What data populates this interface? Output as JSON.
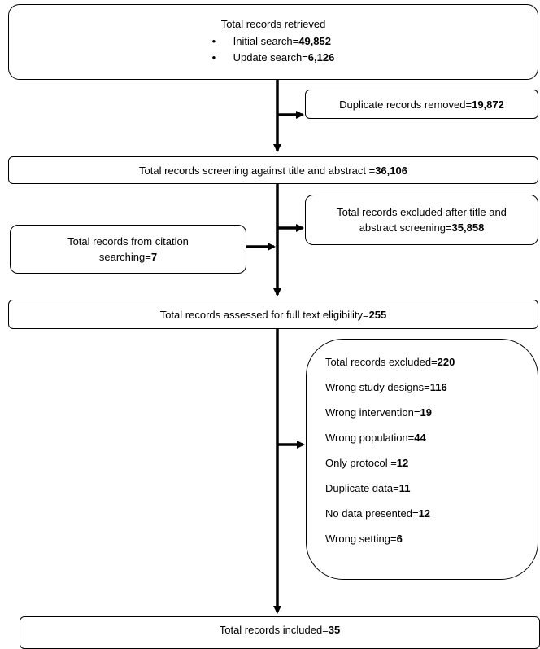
{
  "retrieved": {
    "title": "Total records retrieved",
    "items": [
      {
        "label": "Initial search=",
        "value": "49,852"
      },
      {
        "label": "Update search=",
        "value": "6,126"
      }
    ]
  },
  "duplicates": {
    "label": "Duplicate records removed=",
    "value": "19,872"
  },
  "screening": {
    "label": "Total records screening against title and abstract =",
    "value": "36,106"
  },
  "excluded_ta": {
    "line1": "Total records excluded after title and",
    "line2": "abstract screening=",
    "value": "35,858"
  },
  "citation": {
    "line1": "Total records from citation",
    "line2": "searching=",
    "value": "7"
  },
  "fulltext": {
    "label": "Total records assessed for full text eligibility=",
    "value": "255"
  },
  "excluded_ft": {
    "items": [
      {
        "label": "Total records excluded=",
        "value": "220"
      },
      {
        "label": "Wrong study designs=",
        "value": "116"
      },
      {
        "label": "Wrong intervention=",
        "value": "19"
      },
      {
        "label": "Wrong population=",
        "value": "44"
      },
      {
        "label": "Only protocol =",
        "value": "12"
      },
      {
        "label": "Duplicate data=",
        "value": "11"
      },
      {
        "label": "No data presented=",
        "value": "12"
      },
      {
        "label": "Wrong setting=",
        "value": "6"
      }
    ]
  },
  "included": {
    "label": "Total records included=",
    "value": "35"
  },
  "bullet_glyph": "•"
}
